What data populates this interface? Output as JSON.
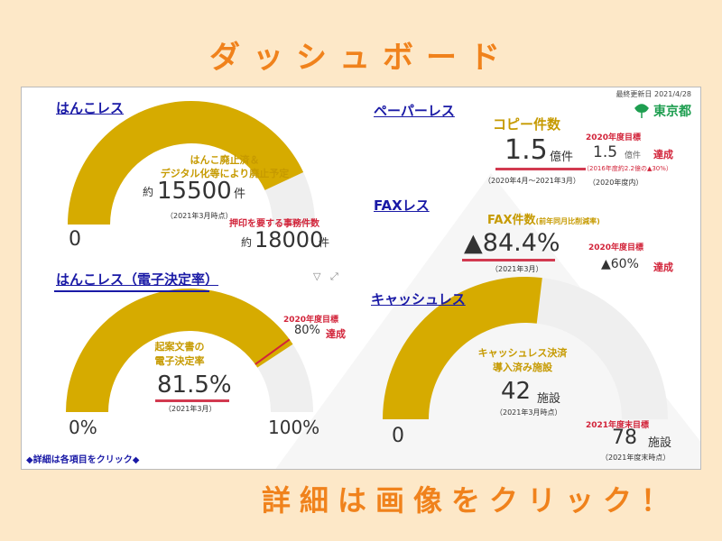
{
  "page": {
    "title": "ダッシュボード",
    "bottom_cta": "詳細は画像をクリック！",
    "updated": "最終更新日 2021/4/28",
    "logo_text": "東京都",
    "details_note": "◆詳細は各項目をクリック◆"
  },
  "hanko": {
    "title": "はんこレス",
    "label_line1": "はんこ廃止済＆",
    "label_line2": "デジタル化等により廃止予定",
    "value_prefix": "約",
    "value": "15500",
    "unit": "件",
    "as_of": "（2021年3月時点）",
    "axis_min": "0",
    "target_label": "押印を要する事務件数",
    "target_prefix": "約",
    "target_value": "18000",
    "target_unit": "件",
    "progress": 0.861
  },
  "edecision": {
    "title": "はんこレス（電子決定率）",
    "label_line1": "起案文書の",
    "label_line2": "電子決定率",
    "value": "81.5%",
    "as_of": "（2021年3月）",
    "axis_min": "0%",
    "axis_max": "100%",
    "target_label": "2020年度目標",
    "target_value": "80%",
    "achieved": "達成",
    "progress": 0.815
  },
  "paperless": {
    "title": "ペーパーレス",
    "label": "コピー件数",
    "value": "1.5",
    "unit": "億件",
    "period": "（2020年4月～2021年3月）",
    "target_label": "2020年度目標",
    "target_value": "1.5",
    "target_unit": "億件",
    "achieved": "達成",
    "target_note": "（2016年度約2.2億の▲30%）",
    "target_period": "（2020年度内）"
  },
  "fax": {
    "title": "FAXレス",
    "label": "FAX件数",
    "label_note": "(前年同月比削減率)",
    "value": "▲84.4%",
    "as_of": "（2021年3月）",
    "target_label": "2020年度目標",
    "target_value": "▲60%",
    "achieved": "達成"
  },
  "cashless": {
    "title": "キャッシュレス",
    "label_line1": "キャッシュレス決済",
    "label_line2": "導入済み施設",
    "value": "42",
    "unit": "施設",
    "as_of": "（2021年3月時点）",
    "axis_min": "0",
    "target_label": "2021年度末目標",
    "target_value": "78",
    "target_unit": "施設",
    "target_period": "（2021年度末時点）",
    "progress": 0.538
  },
  "colors": {
    "gauge_fill": "#d6ab00",
    "gauge_track": "#efefef",
    "accent_orange": "#f0821c",
    "link_blue": "#1a1aa6",
    "red": "#d2243a"
  }
}
